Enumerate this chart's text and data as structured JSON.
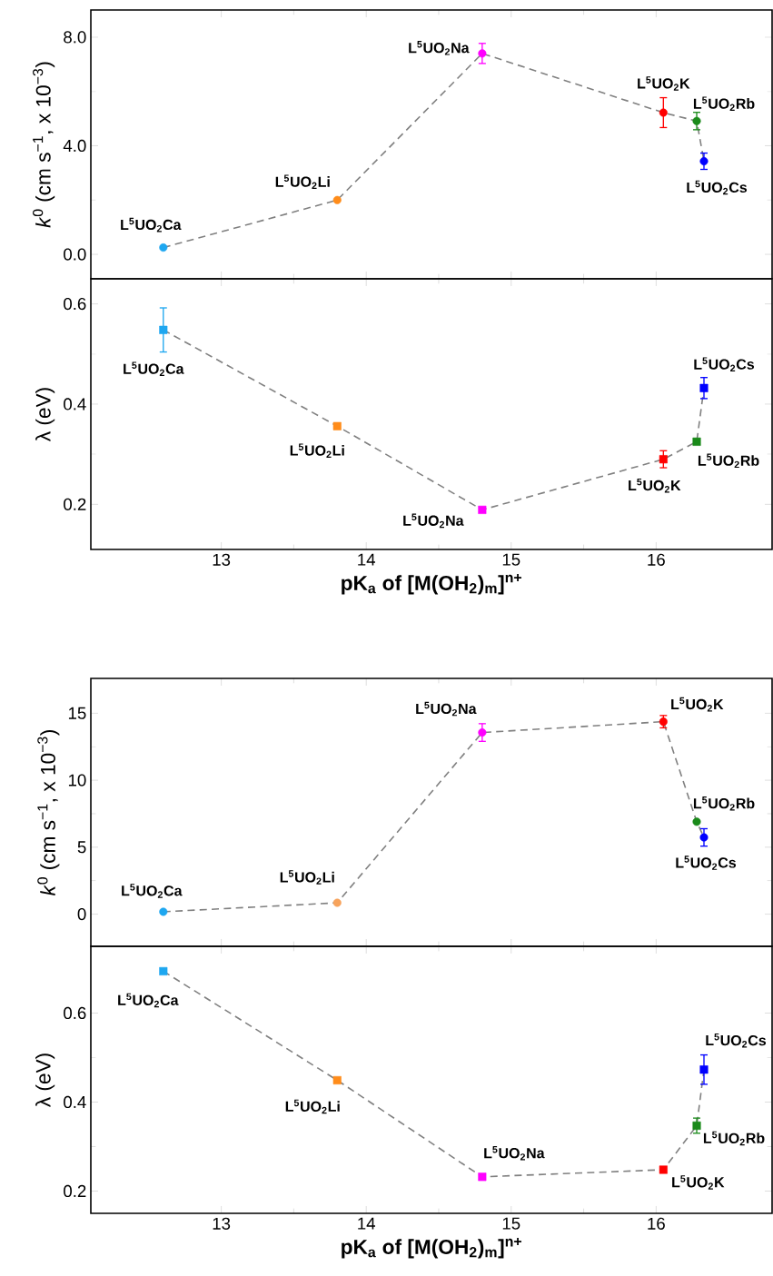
{
  "chart_data": [
    {
      "type": "line",
      "ylabel": "*k*$^{0}$ (cm s$^{−1}$, x 10$^{−3}$)",
      "x": [
        12.6,
        13.8,
        14.8,
        16.05,
        16.28,
        16.33
      ],
      "xlim": [
        12.1,
        16.8
      ],
      "xticks": [
        13,
        14,
        15,
        16
      ],
      "ylim": [
        -0.9,
        9.0
      ],
      "yticks": [
        {
          "value": 0,
          "label": "0.0"
        },
        {
          "value": 4,
          "label": "4.0"
        },
        {
          "value": 8,
          "label": "8.0"
        }
      ],
      "tick_labels": "y",
      "series": [
        {
          "color": "#808080",
          "line_style": "dashed",
          "marker": "circle",
          "colors": [
            "#1ea7f0",
            "#ff8c1a",
            "#ff00ff",
            "#ff0000",
            "#1a8a1a",
            "#0000ff"
          ],
          "values": [
            0.25,
            2.0,
            7.4,
            5.22,
            4.91,
            3.43
          ],
          "errors": [
            null,
            null,
            0.37,
            0.55,
            0.32,
            0.3
          ]
        }
      ],
      "annotations": [
        {
          "text": "L$^{5}$UO$_{2}$Ca",
          "x": 12.6,
          "y": 0.25
        },
        {
          "text": "L$^{5}$UO$_{2}$Li",
          "x": 13.8,
          "y": 2.0
        },
        {
          "text": "L$^{5}$UO$_{2}$Na",
          "x": 14.8,
          "y": 7.4
        },
        {
          "text": "L$^{5}$UO$_{2}$K",
          "x": 16.05,
          "y": 5.22
        },
        {
          "text": "L$^{5}$UO$_{2}$Rb",
          "x": 16.28,
          "y": 4.91
        },
        {
          "text": "L$^{5}$UO$_{2}$Cs",
          "x": 16.33,
          "y": 3.43
        }
      ]
    },
    {
      "type": "line",
      "ylabel": "λ (eV)",
      "xlabel": "pK$_{a}$ of [M(OH$_{2}$)$_{m}$]$^{n+}$",
      "x": [
        12.6,
        13.8,
        14.8,
        16.05,
        16.28,
        16.33
      ],
      "xlim": [
        12.1,
        16.8
      ],
      "xticks": [
        13,
        14,
        15,
        16
      ],
      "ylim": [
        0.11,
        0.65
      ],
      "yticks": [
        0.2,
        0.4,
        0.6
      ],
      "series": [
        {
          "color": "#808080",
          "line_style": "dashed",
          "marker": "square",
          "colors": [
            "#1ea7f0",
            "#ff8c1a",
            "#ff00ff",
            "#ff0000",
            "#1a8a1a",
            "#0000ff"
          ],
          "values": [
            0.548,
            0.356,
            0.189,
            0.29,
            0.325,
            0.432
          ],
          "errors": [
            0.044,
            null,
            null,
            0.017,
            null,
            0.021
          ]
        }
      ],
      "annotations": [
        {
          "text": "L$^{5}$UO$_{2}$Ca",
          "x": 12.6,
          "y": 0.548
        },
        {
          "text": "L$^{5}$UO$_{2}$Li",
          "x": 13.8,
          "y": 0.356
        },
        {
          "text": "L$^{5}$UO$_{2}$Na",
          "x": 14.8,
          "y": 0.189
        },
        {
          "text": "L$^{5}$UO$_{2}$K",
          "x": 16.05,
          "y": 0.29
        },
        {
          "text": "L$^{5}$UO$_{2}$Rb",
          "x": 16.28,
          "y": 0.325
        },
        {
          "text": "L$^{5}$UO$_{2}$Cs",
          "x": 16.33,
          "y": 0.432
        }
      ]
    },
    {
      "type": "line",
      "ylabel": "*k*$^{0}$ (cm s$^{−1}$, x 10$^{−3}$)",
      "x": [
        12.6,
        13.8,
        14.8,
        16.05,
        16.28,
        16.33
      ],
      "xlim": [
        12.1,
        16.8
      ],
      "xticks": [
        13,
        14,
        15,
        16
      ],
      "ylim": [
        -2.4,
        17.6
      ],
      "yticks": [
        0,
        5,
        10,
        15
      ],
      "tick_labels": "y",
      "series": [
        {
          "color": "#808080",
          "line_style": "dashed",
          "marker": "circle",
          "colors": [
            "#1ea7f0",
            "#f7a35c",
            "#ff00ff",
            "#ff0000",
            "#1a8a1a",
            "#0000ff"
          ],
          "values": [
            0.18,
            0.85,
            13.56,
            14.37,
            6.9,
            5.73
          ],
          "errors": [
            null,
            null,
            0.66,
            0.46,
            null,
            0.65
          ]
        }
      ],
      "annotations": [
        {
          "text": "L$^{5}$UO$_{2}$Ca",
          "x": 12.6,
          "y": 0.18
        },
        {
          "text": "L$^{5}$UO$_{2}$Li",
          "x": 13.8,
          "y": 0.85
        },
        {
          "text": "L$^{5}$UO$_{2}$Na",
          "x": 14.8,
          "y": 13.56
        },
        {
          "text": "L$^{5}$UO$_{2}$K",
          "x": 16.05,
          "y": 14.37
        },
        {
          "text": "L$^{5}$UO$_{2}$Rb",
          "x": 16.28,
          "y": 6.9
        },
        {
          "text": "L$^{5}$UO$_{2}$Cs",
          "x": 16.33,
          "y": 5.73
        }
      ]
    },
    {
      "type": "line",
      "ylabel": "λ (eV)",
      "xlabel": "pK$_{a}$ of [M(OH$_{2}$)$_{m}$]$^{n+}$",
      "x": [
        12.6,
        13.8,
        14.8,
        16.05,
        16.28,
        16.33
      ],
      "xlim": [
        12.1,
        16.8
      ],
      "xticks": [
        13,
        14,
        15,
        16
      ],
      "ylim": [
        0.15,
        0.75
      ],
      "yticks": [
        0.2,
        0.4,
        0.6
      ],
      "series": [
        {
          "color": "#808080",
          "line_style": "dashed",
          "marker": "square",
          "colors": [
            "#1ea7f0",
            "#ff8c1a",
            "#ff00ff",
            "#ff0000",
            "#1a8a1a",
            "#0000ff"
          ],
          "values": [
            0.694,
            0.449,
            0.232,
            0.248,
            0.347,
            0.473
          ],
          "errors": [
            null,
            null,
            null,
            null,
            0.017,
            0.033
          ]
        }
      ],
      "annotations": [
        {
          "text": "L$^{5}$UO$_{2}$Ca",
          "x": 12.6,
          "y": 0.694
        },
        {
          "text": "L$^{5}$UO$_{2}$Li",
          "x": 13.8,
          "y": 0.449
        },
        {
          "text": "L$^{5}$UO$_{2}$Na",
          "x": 14.8,
          "y": 0.232
        },
        {
          "text": "L$^{5}$UO$_{2}$K",
          "x": 16.05,
          "y": 0.248
        },
        {
          "text": "L$^{5}$UO$_{2}$Rb",
          "x": 16.28,
          "y": 0.347
        },
        {
          "text": "L$^{5}$UO$_{2}$Cs",
          "x": 16.33,
          "y": 0.473
        }
      ]
    }
  ]
}
